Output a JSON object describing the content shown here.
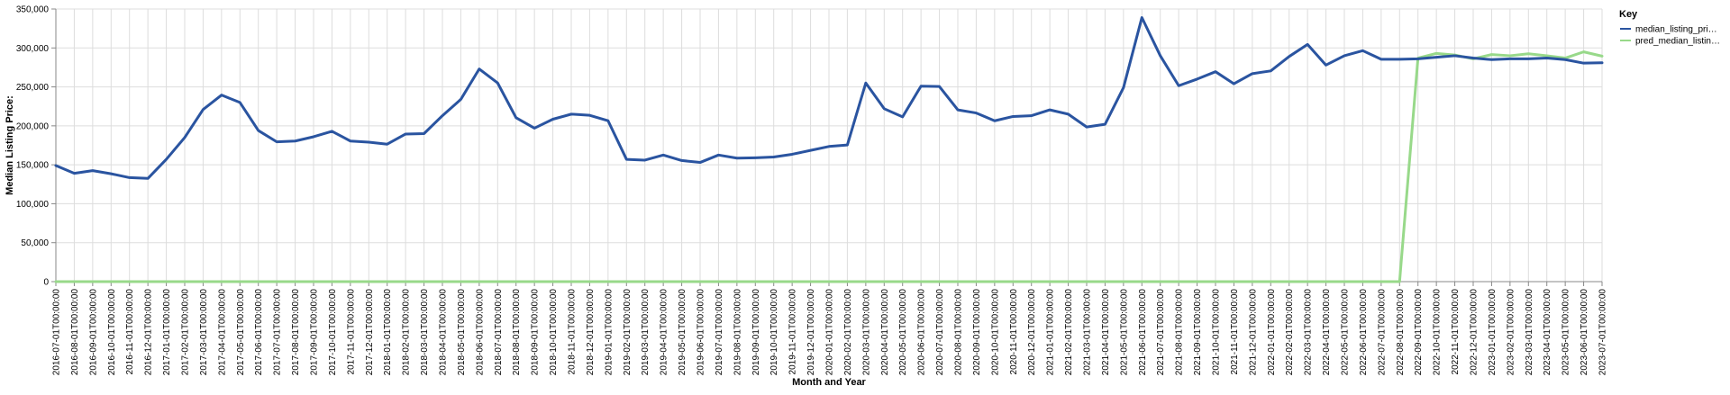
{
  "chart_data": {
    "type": "line",
    "xlabel": "Month and Year",
    "ylabel": "Median Listing Price:",
    "ylim": [
      0,
      350000
    ],
    "yticks": [
      0,
      50000,
      100000,
      150000,
      200000,
      250000,
      300000,
      350000
    ],
    "ytick_labels": [
      "0",
      "50,000",
      "100,000",
      "150,000",
      "200,000",
      "250,000",
      "300,000",
      "350,000"
    ],
    "grid": true,
    "legend": {
      "title": "Key",
      "position": "top-right"
    },
    "x": [
      "2016-07-01T00:00:00",
      "2016-08-01T00:00:00",
      "2016-09-01T00:00:00",
      "2016-10-01T00:00:00",
      "2016-11-01T00:00:00",
      "2016-12-01T00:00:00",
      "2017-01-01T00:00:00",
      "2017-02-01T00:00:00",
      "2017-03-01T00:00:00",
      "2017-04-01T00:00:00",
      "2017-05-01T00:00:00",
      "2017-06-01T00:00:00",
      "2017-07-01T00:00:00",
      "2017-08-01T00:00:00",
      "2017-09-01T00:00:00",
      "2017-10-01T00:00:00",
      "2017-11-01T00:00:00",
      "2017-12-01T00:00:00",
      "2018-01-01T00:00:00",
      "2018-02-01T00:00:00",
      "2018-03-01T00:00:00",
      "2018-04-01T00:00:00",
      "2018-05-01T00:00:00",
      "2018-06-01T00:00:00",
      "2018-07-01T00:00:00",
      "2018-08-01T00:00:00",
      "2018-09-01T00:00:00",
      "2018-10-01T00:00:00",
      "2018-11-01T00:00:00",
      "2018-12-01T00:00:00",
      "2019-01-01T00:00:00",
      "2019-02-01T00:00:00",
      "2019-03-01T00:00:00",
      "2019-04-01T00:00:00",
      "2019-05-01T00:00:00",
      "2019-06-01T00:00:00",
      "2019-07-01T00:00:00",
      "2019-08-01T00:00:00",
      "2019-09-01T00:00:00",
      "2019-10-01T00:00:00",
      "2019-11-01T00:00:00",
      "2019-12-01T00:00:00",
      "2020-01-01T00:00:00",
      "2020-02-01T00:00:00",
      "2020-03-01T00:00:00",
      "2020-04-01T00:00:00",
      "2020-05-01T00:00:00",
      "2020-06-01T00:00:00",
      "2020-07-01T00:00:00",
      "2020-08-01T00:00:00",
      "2020-09-01T00:00:00",
      "2020-10-01T00:00:00",
      "2020-11-01T00:00:00",
      "2020-12-01T00:00:00",
      "2021-01-01T00:00:00",
      "2021-02-01T00:00:00",
      "2021-03-01T00:00:00",
      "2021-04-01T00:00:00",
      "2021-05-01T00:00:00",
      "2021-06-01T00:00:00",
      "2021-07-01T00:00:00",
      "2021-08-01T00:00:00",
      "2021-09-01T00:00:00",
      "2021-10-01T00:00:00",
      "2021-11-01T00:00:00",
      "2021-12-01T00:00:00",
      "2022-01-01T00:00:00",
      "2022-02-01T00:00:00",
      "2022-03-01T00:00:00",
      "2022-04-01T00:00:00",
      "2022-05-01T00:00:00",
      "2022-06-01T00:00:00",
      "2022-07-01T00:00:00",
      "2022-08-01T00:00:00",
      "2022-09-01T00:00:00",
      "2022-10-01T00:00:00",
      "2022-11-01T00:00:00",
      "2022-12-01T00:00:00",
      "2023-01-01T00:00:00",
      "2023-02-01T00:00:00",
      "2023-03-01T00:00:00",
      "2023-04-01T00:00:00",
      "2023-05-01T00:00:00",
      "2023-06-01T00:00:00",
      "2023-07-01T00:00:00"
    ],
    "series": [
      {
        "name": "median_listing_pri…",
        "color": "#2a54a0",
        "values": [
          149000,
          139000,
          142500,
          138500,
          133500,
          132500,
          157000,
          185000,
          221000,
          239500,
          230000,
          194000,
          179500,
          180500,
          186000,
          193000,
          180500,
          179000,
          176500,
          189500,
          190000,
          213000,
          234000,
          273000,
          255000,
          210500,
          197000,
          208500,
          215000,
          213500,
          206500,
          157000,
          156000,
          162500,
          155500,
          153000,
          162500,
          158500,
          159000,
          160000,
          163500,
          168500,
          173500,
          175500,
          255000,
          222000,
          211500,
          251000,
          250500,
          220500,
          216500,
          206500,
          212000,
          213000,
          220500,
          215000,
          198500,
          202000,
          249000,
          339000,
          290000,
          251500,
          260000,
          269500,
          254000,
          267000,
          270500,
          289000,
          304500,
          278000,
          290000,
          296500,
          285500,
          285500,
          286000,
          288000,
          290000,
          287000,
          285000,
          286000,
          286000,
          287000,
          285000,
          280500,
          281000
        ]
      },
      {
        "name": "pred_median_listin…",
        "color": "#98d98a",
        "values": [
          0,
          0,
          0,
          0,
          0,
          0,
          0,
          0,
          0,
          0,
          0,
          0,
          0,
          0,
          0,
          0,
          0,
          0,
          0,
          0,
          0,
          0,
          0,
          0,
          0,
          0,
          0,
          0,
          0,
          0,
          0,
          0,
          0,
          0,
          0,
          0,
          0,
          0,
          0,
          0,
          0,
          0,
          0,
          0,
          0,
          0,
          0,
          0,
          0,
          0,
          0,
          0,
          0,
          0,
          0,
          0,
          0,
          0,
          0,
          0,
          0,
          0,
          0,
          0,
          0,
          0,
          0,
          0,
          0,
          0,
          0,
          0,
          0,
          0,
          287000,
          293000,
          291000,
          286000,
          291500,
          290000,
          292500,
          290000,
          287000,
          295000,
          289500
        ]
      }
    ]
  }
}
